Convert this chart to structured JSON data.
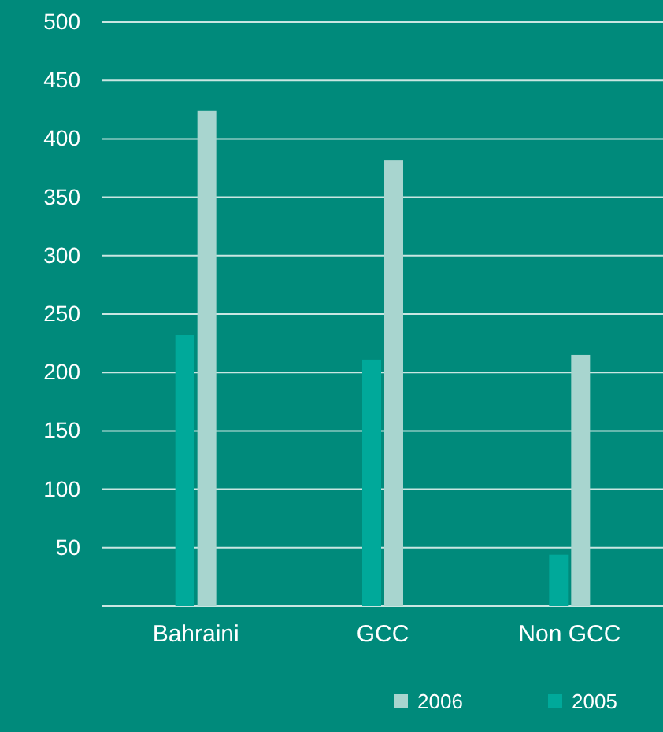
{
  "chart_data": {
    "type": "bar",
    "categories": [
      "Bahraini",
      "GCC",
      "Non GCC"
    ],
    "series": [
      {
        "name": "2005",
        "color": "#00a99a",
        "values": [
          232,
          211,
          44
        ]
      },
      {
        "name": "2006",
        "color": "#a8d5cf",
        "values": [
          424,
          382,
          215
        ]
      }
    ],
    "ylim": [
      0,
      500
    ],
    "yticks": [
      50,
      100,
      150,
      200,
      250,
      300,
      350,
      400,
      450,
      500
    ],
    "grid": "y",
    "legend": "bottom right"
  }
}
